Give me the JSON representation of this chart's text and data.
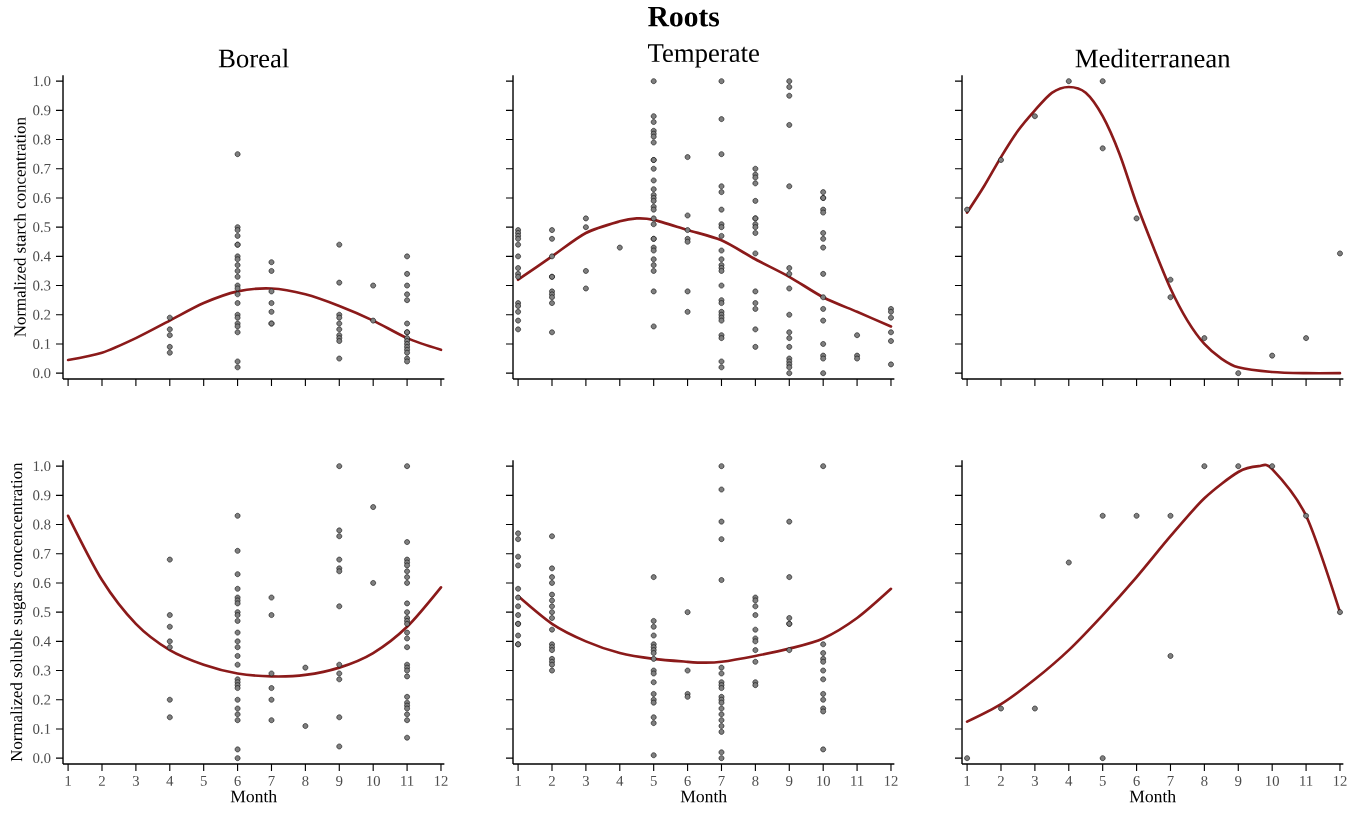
{
  "chart_data": [
    {
      "type": "scatter",
      "subtitle": "Boreal",
      "ylabel": "Normalized starch concentration",
      "xlim": [
        0.85,
        12.1
      ],
      "ylim": [
        -0.02,
        1.02
      ],
      "tick_labels": "y",
      "xticks": [
        1,
        2,
        3,
        4,
        5,
        6,
        7,
        8,
        9,
        10,
        11,
        12
      ],
      "yticks": [
        {
          "value": 0,
          "label": "0.0"
        },
        {
          "value": 0.1,
          "label": "0.1"
        },
        {
          "value": 0.2,
          "label": "0.2"
        },
        {
          "value": 0.3,
          "label": "0.3"
        },
        {
          "value": 0.4,
          "label": "0.4"
        },
        {
          "value": 0.5,
          "label": "0.5"
        },
        {
          "value": 0.6,
          "label": "0.6"
        },
        {
          "value": 0.7,
          "label": "0.7"
        },
        {
          "value": 0.8,
          "label": "0.8"
        },
        {
          "value": 0.9,
          "label": "0.9"
        },
        {
          "value": 1,
          "label": "1.0"
        }
      ],
      "series": [
        {
          "color": "#7f7f7f",
          "x": [
            4,
            4,
            4,
            4,
            4,
            6,
            6,
            6,
            6,
            6,
            6,
            6,
            6,
            6,
            6,
            6,
            6,
            6,
            6,
            6,
            6,
            6,
            6,
            6,
            6,
            6,
            6,
            7,
            7,
            7,
            7,
            7,
            7,
            7,
            9,
            9,
            9,
            9,
            9,
            9,
            9,
            9,
            9,
            9,
            10,
            10,
            11,
            11,
            11,
            11,
            11,
            11,
            11,
            11,
            11,
            11,
            11,
            11,
            11,
            11,
            11,
            11
          ],
          "values": [
            0.19,
            0.15,
            0.13,
            0.09,
            0.07,
            0.75,
            0.5,
            0.49,
            0.47,
            0.44,
            0.44,
            0.4,
            0.39,
            0.37,
            0.35,
            0.33,
            0.3,
            0.29,
            0.27,
            0.24,
            0.2,
            0.19,
            0.17,
            0.16,
            0.14,
            0.04,
            0.02,
            0.38,
            0.35,
            0.28,
            0.24,
            0.21,
            0.17,
            0.17,
            0.44,
            0.31,
            0.2,
            0.19,
            0.17,
            0.15,
            0.13,
            0.12,
            0.11,
            0.05,
            0.3,
            0.18,
            0.4,
            0.34,
            0.3,
            0.27,
            0.25,
            0.17,
            0.14,
            0.14,
            0.12,
            0.11,
            0.1,
            0.09,
            0.08,
            0.07,
            0.05,
            0.04
          ]
        },
        {
          "type": "line",
          "color": "#8b1a1a",
          "x": [
            1,
            2,
            3,
            4,
            5,
            6,
            7,
            8,
            9,
            10,
            11,
            12
          ],
          "values": [
            0.045,
            0.07,
            0.12,
            0.18,
            0.24,
            0.28,
            0.29,
            0.27,
            0.23,
            0.18,
            0.12,
            0.08
          ]
        }
      ]
    },
    {
      "type": "scatter",
      "title": "Roots",
      "subtitle": "Temperate",
      "xlim": [
        0.85,
        12.1
      ],
      "ylim": [
        -0.02,
        1.02
      ],
      "tick_labels": false,
      "xticks": [
        1,
        2,
        3,
        4,
        5,
        6,
        7,
        8,
        9,
        10,
        11,
        12
      ],
      "yticks": [
        0,
        0.1,
        0.2,
        0.3,
        0.4,
        0.5,
        0.6,
        0.7,
        0.8,
        0.9,
        1
      ],
      "series": [
        {
          "color": "#7f7f7f",
          "x": [
            1,
            1,
            1,
            1,
            1,
            1,
            1,
            1,
            1,
            1,
            1,
            1,
            1,
            1,
            2,
            2,
            2,
            2,
            2,
            2,
            2,
            2,
            2,
            2,
            3,
            3,
            3,
            3,
            4,
            5,
            5,
            5,
            5,
            5,
            5,
            5,
            5,
            5,
            5,
            5,
            5,
            5,
            5,
            5,
            5,
            5,
            5,
            5,
            5,
            5,
            5,
            5,
            5,
            5,
            5,
            5,
            5,
            6,
            6,
            6,
            6,
            6,
            6,
            6,
            7,
            7,
            7,
            7,
            7,
            7,
            7,
            7,
            7,
            7,
            7,
            7,
            7,
            7,
            7,
            7,
            7,
            7,
            7,
            7,
            7,
            7,
            7,
            7,
            7,
            8,
            8,
            8,
            8,
            8,
            8,
            8,
            8,
            8,
            8,
            8,
            8,
            8,
            8,
            8,
            8,
            9,
            9,
            9,
            9,
            9,
            9,
            9,
            9,
            9,
            9,
            9,
            9,
            9,
            9,
            9,
            9,
            9,
            10,
            10,
            10,
            10,
            10,
            10,
            10,
            10,
            10,
            10,
            10,
            10,
            10,
            10,
            10,
            10,
            11,
            11,
            11,
            12,
            12,
            12,
            12,
            12,
            12
          ],
          "values": [
            0.49,
            0.48,
            0.47,
            0.46,
            0.44,
            0.4,
            0.36,
            0.34,
            0.33,
            0.24,
            0.23,
            0.21,
            0.18,
            0.15,
            0.49,
            0.46,
            0.4,
            0.33,
            0.33,
            0.28,
            0.27,
            0.26,
            0.24,
            0.14,
            0.53,
            0.5,
            0.35,
            0.29,
            0.43,
            1.0,
            0.88,
            0.86,
            0.83,
            0.82,
            0.81,
            0.79,
            0.73,
            0.73,
            0.7,
            0.66,
            0.63,
            0.61,
            0.6,
            0.59,
            0.57,
            0.56,
            0.53,
            0.51,
            0.46,
            0.46,
            0.43,
            0.42,
            0.39,
            0.37,
            0.35,
            0.28,
            0.16,
            0.74,
            0.54,
            0.49,
            0.46,
            0.45,
            0.28,
            0.21,
            1.0,
            0.87,
            0.75,
            0.64,
            0.62,
            0.56,
            0.51,
            0.5,
            0.47,
            0.42,
            0.39,
            0.37,
            0.36,
            0.35,
            0.3,
            0.25,
            0.24,
            0.21,
            0.2,
            0.19,
            0.18,
            0.13,
            0.12,
            0.04,
            0.02,
            0.7,
            0.68,
            0.67,
            0.65,
            0.59,
            0.53,
            0.53,
            0.51,
            0.5,
            0.48,
            0.41,
            0.28,
            0.24,
            0.22,
            0.15,
            0.09,
            1.0,
            0.98,
            0.95,
            0.85,
            0.64,
            0.36,
            0.34,
            0.29,
            0.2,
            0.14,
            0.12,
            0.09,
            0.05,
            0.04,
            0.03,
            0.02,
            0.0,
            0.62,
            0.6,
            0.6,
            0.56,
            0.55,
            0.48,
            0.46,
            0.43,
            0.34,
            0.26,
            0.22,
            0.18,
            0.1,
            0.06,
            0.05,
            0.0,
            0.13,
            0.06,
            0.05,
            0.22,
            0.21,
            0.19,
            0.14,
            0.11,
            0.03
          ]
        },
        {
          "type": "line",
          "color": "#8b1a1a",
          "x": [
            1,
            2,
            3,
            4,
            4.5,
            5,
            6,
            7,
            8,
            9,
            10,
            11,
            12
          ],
          "values": [
            0.32,
            0.4,
            0.48,
            0.52,
            0.53,
            0.525,
            0.49,
            0.455,
            0.39,
            0.33,
            0.26,
            0.21,
            0.16
          ]
        }
      ]
    },
    {
      "type": "scatter",
      "subtitle": "Mediterranean",
      "xlim": [
        0.85,
        12.1
      ],
      "ylim": [
        -0.02,
        1.02
      ],
      "tick_labels": false,
      "xticks": [
        1,
        2,
        3,
        4,
        5,
        6,
        7,
        8,
        9,
        10,
        11,
        12
      ],
      "yticks": [
        0,
        0.1,
        0.2,
        0.3,
        0.4,
        0.5,
        0.6,
        0.7,
        0.8,
        0.9,
        1
      ],
      "series": [
        {
          "color": "#7f7f7f",
          "x": [
            1,
            2,
            3,
            4,
            5,
            5,
            6,
            7,
            7,
            8,
            9,
            10,
            11,
            12
          ],
          "values": [
            0.56,
            0.73,
            0.88,
            1.0,
            1.0,
            0.77,
            0.53,
            0.32,
            0.26,
            0.12,
            0.0,
            0.06,
            0.12,
            0.41
          ]
        },
        {
          "type": "line",
          "color": "#8b1a1a",
          "x": [
            1,
            1.5,
            2,
            2.5,
            3,
            3.5,
            4,
            4.5,
            5,
            5.5,
            6,
            6.5,
            7,
            7.5,
            8,
            8.5,
            9,
            10,
            11,
            12
          ],
          "values": [
            0.55,
            0.64,
            0.74,
            0.83,
            0.9,
            0.96,
            0.98,
            0.96,
            0.88,
            0.75,
            0.58,
            0.43,
            0.29,
            0.18,
            0.1,
            0.05,
            0.02,
            0.004,
            0.0,
            0.0
          ]
        }
      ]
    },
    {
      "type": "scatter",
      "ylabel": "Normalized soluble sugars concencentration",
      "xlabel": "Month",
      "xlim": [
        0.85,
        12.1
      ],
      "ylim": [
        -0.02,
        1.02
      ],
      "xticks": [
        1,
        2,
        3,
        4,
        5,
        6,
        7,
        8,
        9,
        10,
        11,
        12
      ],
      "yticks": [
        {
          "value": 0,
          "label": "0.0"
        },
        {
          "value": 0.1,
          "label": "0.1"
        },
        {
          "value": 0.2,
          "label": "0.2"
        },
        {
          "value": 0.3,
          "label": "0.3"
        },
        {
          "value": 0.4,
          "label": "0.4"
        },
        {
          "value": 0.5,
          "label": "0.5"
        },
        {
          "value": 0.6,
          "label": "0.6"
        },
        {
          "value": 0.7,
          "label": "0.7"
        },
        {
          "value": 0.8,
          "label": "0.8"
        },
        {
          "value": 0.9,
          "label": "0.9"
        },
        {
          "value": 1,
          "label": "1.0"
        }
      ],
      "series": [
        {
          "color": "#7f7f7f",
          "x": [
            4,
            4,
            4,
            4,
            4,
            4,
            4,
            6,
            6,
            6,
            6,
            6,
            6,
            6,
            6,
            6,
            6,
            6,
            6,
            6,
            6,
            6,
            6,
            6,
            6,
            6,
            6,
            6,
            6,
            6,
            6,
            6,
            7,
            7,
            7,
            7,
            7,
            7,
            8,
            8,
            9,
            9,
            9,
            9,
            9,
            9,
            9,
            9,
            9,
            9,
            9,
            9,
            10,
            10,
            11,
            11,
            11,
            11,
            11,
            11,
            11,
            11,
            11,
            11,
            11,
            11,
            11,
            11,
            11,
            11,
            11,
            11,
            11,
            11,
            11,
            11,
            11,
            11,
            11,
            11,
            11
          ],
          "values": [
            0.68,
            0.49,
            0.45,
            0.4,
            0.38,
            0.2,
            0.14,
            0.83,
            0.71,
            0.63,
            0.58,
            0.55,
            0.54,
            0.53,
            0.5,
            0.49,
            0.47,
            0.43,
            0.4,
            0.38,
            0.35,
            0.32,
            0.27,
            0.26,
            0.25,
            0.24,
            0.2,
            0.17,
            0.15,
            0.13,
            0.03,
            0.0,
            0.55,
            0.49,
            0.29,
            0.24,
            0.2,
            0.13,
            0.31,
            0.11,
            1.0,
            0.78,
            0.76,
            0.68,
            0.65,
            0.64,
            0.52,
            0.32,
            0.29,
            0.27,
            0.14,
            0.04,
            0.86,
            0.6,
            1.0,
            0.74,
            0.68,
            0.67,
            0.66,
            0.64,
            0.62,
            0.6,
            0.53,
            0.5,
            0.48,
            0.47,
            0.46,
            0.43,
            0.41,
            0.38,
            0.32,
            0.31,
            0.3,
            0.28,
            0.21,
            0.19,
            0.18,
            0.17,
            0.15,
            0.13,
            0.07
          ]
        },
        {
          "type": "line",
          "color": "#8b1a1a",
          "x": [
            1,
            2,
            3,
            4,
            5,
            6,
            7,
            8,
            9,
            10,
            11,
            12
          ],
          "values": [
            0.83,
            0.61,
            0.46,
            0.37,
            0.32,
            0.29,
            0.28,
            0.285,
            0.31,
            0.36,
            0.45,
            0.585
          ]
        }
      ]
    },
    {
      "type": "scatter",
      "xlabel": "Month",
      "xlim": [
        0.85,
        12.1
      ],
      "ylim": [
        -0.02,
        1.02
      ],
      "tick_labels": "x",
      "xticks": [
        1,
        2,
        3,
        4,
        5,
        6,
        7,
        8,
        9,
        10,
        11,
        12
      ],
      "yticks": [
        0,
        0.1,
        0.2,
        0.3,
        0.4,
        0.5,
        0.6,
        0.7,
        0.8,
        0.9,
        1
      ],
      "series": [
        {
          "color": "#7f7f7f",
          "x": [
            1,
            1,
            1,
            1,
            1,
            1,
            1,
            1,
            1,
            1,
            1,
            1,
            1,
            2,
            2,
            2,
            2,
            2,
            2,
            2,
            2,
            2,
            2,
            2,
            2,
            2,
            2,
            2,
            2,
            2,
            5,
            5,
            5,
            5,
            5,
            5,
            5,
            5,
            5,
            5,
            5,
            5,
            5,
            5,
            5,
            5,
            5,
            5,
            6,
            6,
            6,
            6,
            7,
            7,
            7,
            7,
            7,
            7,
            7,
            7,
            7,
            7,
            7,
            7,
            7,
            7,
            7,
            7,
            7,
            7,
            7,
            7,
            8,
            8,
            8,
            8,
            8,
            8,
            8,
            8,
            8,
            8,
            8,
            9,
            9,
            9,
            9,
            9,
            9,
            10,
            10,
            10,
            10,
            10,
            10,
            10,
            10,
            10,
            10,
            10,
            10
          ],
          "values": [
            0.77,
            0.75,
            0.69,
            0.66,
            0.58,
            0.55,
            0.52,
            0.49,
            0.46,
            0.46,
            0.42,
            0.39,
            0.39,
            0.76,
            0.65,
            0.62,
            0.6,
            0.56,
            0.54,
            0.52,
            0.5,
            0.48,
            0.44,
            0.39,
            0.38,
            0.37,
            0.34,
            0.33,
            0.32,
            0.3,
            0.62,
            0.47,
            0.45,
            0.42,
            0.39,
            0.38,
            0.37,
            0.36,
            0.34,
            0.3,
            0.29,
            0.26,
            0.22,
            0.2,
            0.19,
            0.14,
            0.12,
            0.01,
            0.5,
            0.3,
            0.22,
            0.21,
            1.0,
            0.92,
            0.81,
            0.75,
            0.61,
            0.31,
            0.29,
            0.26,
            0.25,
            0.24,
            0.21,
            0.2,
            0.19,
            0.17,
            0.15,
            0.13,
            0.11,
            0.09,
            0.02,
            0.0,
            0.55,
            0.54,
            0.52,
            0.49,
            0.44,
            0.41,
            0.4,
            0.37,
            0.33,
            0.26,
            0.25,
            0.81,
            0.62,
            0.48,
            0.46,
            0.46,
            0.37,
            1.0,
            0.39,
            0.36,
            0.34,
            0.33,
            0.3,
            0.27,
            0.22,
            0.2,
            0.17,
            0.16,
            0.03
          ]
        },
        {
          "type": "line",
          "color": "#8b1a1a",
          "x": [
            1,
            2,
            3,
            4,
            5,
            6,
            6.5,
            7,
            8,
            9,
            10,
            11,
            12
          ],
          "values": [
            0.555,
            0.46,
            0.4,
            0.36,
            0.34,
            0.33,
            0.327,
            0.33,
            0.35,
            0.375,
            0.41,
            0.48,
            0.58
          ]
        }
      ]
    },
    {
      "type": "scatter",
      "xlabel": "Month",
      "xlim": [
        0.85,
        12.1
      ],
      "ylim": [
        -0.02,
        1.02
      ],
      "tick_labels": "x",
      "xticks": [
        1,
        2,
        3,
        4,
        5,
        6,
        7,
        8,
        9,
        10,
        11,
        12
      ],
      "yticks": [
        0,
        0.1,
        0.2,
        0.3,
        0.4,
        0.5,
        0.6,
        0.7,
        0.8,
        0.9,
        1
      ],
      "series": [
        {
          "color": "#7f7f7f",
          "x": [
            1,
            2,
            3,
            4,
            5,
            5,
            6,
            7,
            7,
            8,
            9,
            10,
            11,
            12
          ],
          "values": [
            0.0,
            0.17,
            0.17,
            0.67,
            0.83,
            0.0,
            0.83,
            0.83,
            0.35,
            1.0,
            1.0,
            1.0,
            0.83,
            0.5
          ]
        },
        {
          "type": "line",
          "color": "#8b1a1a",
          "x": [
            1,
            2,
            3,
            4,
            5,
            6,
            7,
            8,
            9,
            9.6,
            10,
            11,
            12
          ],
          "values": [
            0.125,
            0.185,
            0.27,
            0.37,
            0.49,
            0.62,
            0.76,
            0.89,
            0.98,
            1.0,
            0.99,
            0.83,
            0.5
          ]
        }
      ]
    }
  ]
}
